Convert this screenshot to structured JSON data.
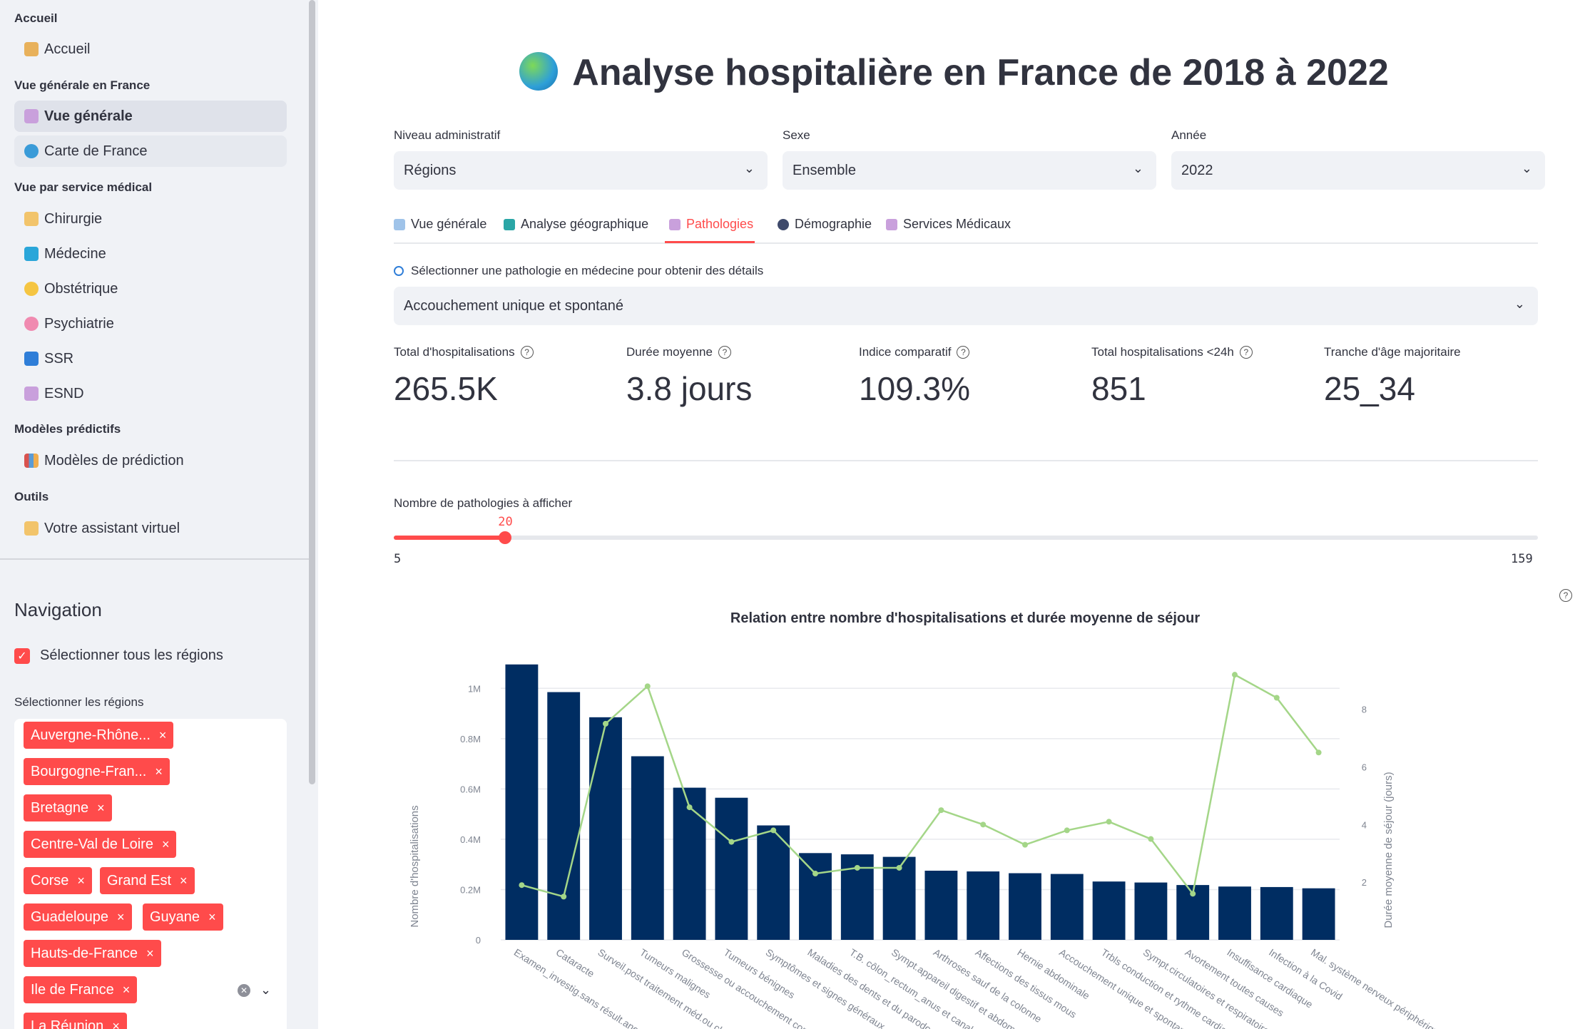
{
  "sidebar": {
    "sections": {
      "accueil": "Accueil",
      "vue_france": "Vue générale en France",
      "vue_service": "Vue par service médical",
      "modeles": "Modèles prédictifs",
      "outils": "Outils"
    },
    "items": [
      {
        "label": "Accueil",
        "icon": "house-icon"
      },
      {
        "label": "Vue générale",
        "icon": "hospital-icon"
      },
      {
        "label": "Carte de France",
        "icon": "globe-icon"
      },
      {
        "label": "Chirurgie",
        "icon": "surgeon-icon"
      },
      {
        "label": "Médecine",
        "icon": "medical-symbol-icon"
      },
      {
        "label": "Obstétrique",
        "icon": "baby-icon"
      },
      {
        "label": "Psychiatrie",
        "icon": "brain-icon"
      },
      {
        "label": "SSR",
        "icon": "wheelchair-icon"
      },
      {
        "label": "ESND",
        "icon": "hospital-icon"
      },
      {
        "label": "Modèles de prédiction",
        "icon": "bar-chart-icon"
      },
      {
        "label": "Votre assistant virtuel",
        "icon": "person-icon"
      }
    ],
    "navigation_title": "Navigation",
    "select_all_label": "Sélectionner tous les régions",
    "select_all_checked": true,
    "regions_label": "Sélectionner les régions",
    "region_tags": [
      "Auvergne-Rhône...",
      "Bourgogne-Fran...",
      "Bretagne",
      "Centre-Val de Loire",
      "Corse",
      "Grand Est",
      "Guadeloupe",
      "Guyane",
      "Hauts-de-France",
      "Ile de France",
      "La Réunion"
    ],
    "tag_remove": "×"
  },
  "main": {
    "title": "Analyse hospitalière en France de 2018 à 2022",
    "filters": [
      {
        "label": "Niveau administratif",
        "value": "Régions"
      },
      {
        "label": "Sexe",
        "value": "Ensemble"
      },
      {
        "label": "Année",
        "value": "2022"
      }
    ],
    "tabs": [
      {
        "label": "Vue générale",
        "icon": "chart-up-icon"
      },
      {
        "label": "Analyse géographique",
        "icon": "map-icon"
      },
      {
        "label": "Pathologies",
        "icon": "hospital-icon"
      },
      {
        "label": "Démographie",
        "icon": "people-icon"
      },
      {
        "label": "Services Médicaux",
        "icon": "hospital-icon"
      }
    ],
    "active_tab": "Pathologies",
    "pathology_select_label": "Sélectionner une pathologie en médecine pour obtenir des détails",
    "pathology_selected": "Accouchement unique et spontané",
    "metrics": [
      {
        "label": "Total d'hospitalisations",
        "value": "265.5K",
        "help": true
      },
      {
        "label": "Durée moyenne",
        "value": "3.8 jours",
        "help": true
      },
      {
        "label": "Indice comparatif",
        "value": "109.3%",
        "help": true
      },
      {
        "label": "Total hospitalisations <24h",
        "value": "851",
        "help": true
      },
      {
        "label": "Tranche d'âge majoritaire",
        "value": "25_34",
        "help": false
      }
    ],
    "slider": {
      "label": "Nombre de pathologies à afficher",
      "value": 20,
      "min": 5,
      "max": 159,
      "value_text": "20",
      "min_text": "5",
      "max_text": "159"
    }
  },
  "chart_data": {
    "type": "bar",
    "title": "Relation entre nombre d'hospitalisations et durée moyenne de séjour",
    "ylabel": "Nombre d'hospitalisations",
    "y2label": "Durée moyenne de séjour (jours)",
    "ylim": [
      0,
      1100000
    ],
    "y2lim": [
      0,
      9.6
    ],
    "yticks": [
      "0",
      "0.2M",
      "0.4M",
      "0.6M",
      "0.8M",
      "1M"
    ],
    "y2ticks": [
      "2",
      "4",
      "6",
      "8"
    ],
    "categories": [
      "Examen_investig.sans résult.anormal",
      "Cataracte",
      "Surveil.post traitement méd.ou chir.",
      "Tumeurs malignes",
      "Grossesse ou accouchement compliqué",
      "Tumeurs bénignes",
      "Symptômes et signes généraux",
      "Maladies des dents et du parodonte",
      "T.B. côlon_rectum_anus et canal anal",
      "Sympt.appareil digestif et abdomen",
      "Arthroses sauf de la colonne",
      "Affections des tissus mous",
      "Hernie abdominale",
      "Accouchement unique et spontané",
      "Trbls conduction et rythme cardiaque",
      "Sympt.circulatoires et respiratoires",
      "Avortement toutes causes",
      "Insuffisance cardiaque",
      "Infection à la Covid",
      "Mal. système nerveux périphérique"
    ],
    "series": [
      {
        "name": "Nombre d'hospitalisations",
        "type": "bar",
        "color": "#002d62",
        "values": [
          1095000,
          985000,
          885000,
          730000,
          605000,
          565000,
          455000,
          345000,
          340000,
          330000,
          275000,
          272000,
          265000,
          262000,
          232000,
          228000,
          218000,
          212000,
          210000,
          205000
        ]
      },
      {
        "name": "Durée moyenne de séjour (jours)",
        "type": "line",
        "axis": "y2",
        "color": "#a4d688",
        "values": [
          1.9,
          1.5,
          7.5,
          8.8,
          4.6,
          3.4,
          3.8,
          2.3,
          2.5,
          2.5,
          4.5,
          4.0,
          3.3,
          3.8,
          4.1,
          3.5,
          1.6,
          9.2,
          8.4,
          6.5
        ]
      }
    ],
    "grid": true
  }
}
